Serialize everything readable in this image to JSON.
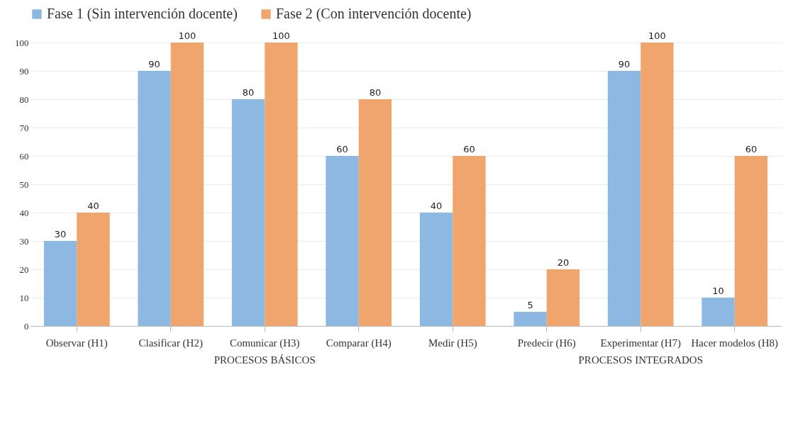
{
  "chart_data": {
    "type": "bar",
    "categories": [
      "Observar (H1)",
      "Clasificar (H2)",
      "Comunicar (H3)",
      "Comparar (H4)",
      "Medir (H5)",
      "Predecir (H6)",
      "Experimentar (H7)",
      "Hacer modelos (H8)"
    ],
    "series": [
      {
        "name": "Fase 1 (Sin intervención docente)",
        "color": "#8db8e2",
        "values": [
          30,
          90,
          80,
          60,
          40,
          5,
          90,
          10
        ]
      },
      {
        "name": "Fase 2  (Con intervención docente)",
        "color": "#f0a56c",
        "values": [
          40,
          100,
          100,
          80,
          60,
          20,
          100,
          60
        ]
      }
    ],
    "ylim": [
      0,
      100
    ],
    "yticks": [
      0,
      10,
      20,
      30,
      40,
      50,
      60,
      70,
      80,
      90,
      100
    ],
    "grid": "y",
    "legend": "top",
    "data_labels": true,
    "annotations": [
      "PROCESOS BÁSICOS",
      "PROCESOS INTEGRADOS"
    ]
  }
}
